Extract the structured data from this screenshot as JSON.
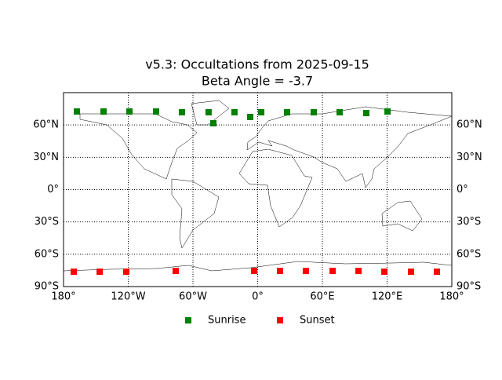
{
  "chart_data": {
    "type": "scatter",
    "title": "v5.3: Occultations from 2025-09-15",
    "subtitle": "Beta Angle = -3.7",
    "xlim": [
      -180,
      180
    ],
    "ylim": [
      -90,
      90
    ],
    "xticks": [
      {
        "value": -180,
        "label": "180°"
      },
      {
        "value": -120,
        "label": "120°W"
      },
      {
        "value": -60,
        "label": "60°W"
      },
      {
        "value": 0,
        "label": "0°"
      },
      {
        "value": 60,
        "label": "60°E"
      },
      {
        "value": 120,
        "label": "120°E"
      },
      {
        "value": 180,
        "label": "180°"
      }
    ],
    "yticks": [
      {
        "value": -90,
        "label": "90°S"
      },
      {
        "value": -60,
        "label": "60°S"
      },
      {
        "value": -30,
        "label": "30°S"
      },
      {
        "value": 0,
        "label": "0°"
      },
      {
        "value": 30,
        "label": "30°N"
      },
      {
        "value": 60,
        "label": "60°N"
      }
    ],
    "grid": true,
    "legend": "lower center",
    "series": [
      {
        "name": "Sunrise",
        "color": "#008000",
        "x": [
          -167.6,
          -142.9,
          -118.9,
          -94.2,
          -70.2,
          -45.5,
          -41.1,
          -21.5,
          -6.9,
          3.3,
          27.3,
          52.0,
          76.0,
          100.7,
          120.4
        ],
        "values": [
          72.5,
          72.5,
          72.5,
          72.5,
          71.8,
          71.8,
          61.6,
          71.8,
          67.4,
          71.8,
          71.8,
          71.8,
          71.8,
          71.0,
          72.5
        ]
      },
      {
        "name": "Sunset",
        "color": "#ff0000",
        "x": [
          -170.5,
          -146.5,
          -121.8,
          -76.0,
          -3.3,
          20.7,
          44.7,
          69.5,
          93.5,
          117.5,
          142.2,
          166.2
        ],
        "values": [
          -76.2,
          -76.2,
          -76.2,
          -75.5,
          -75.5,
          -75.5,
          -75.5,
          -75.5,
          -75.5,
          -76.2,
          -76.2,
          -76.2
        ]
      }
    ]
  }
}
